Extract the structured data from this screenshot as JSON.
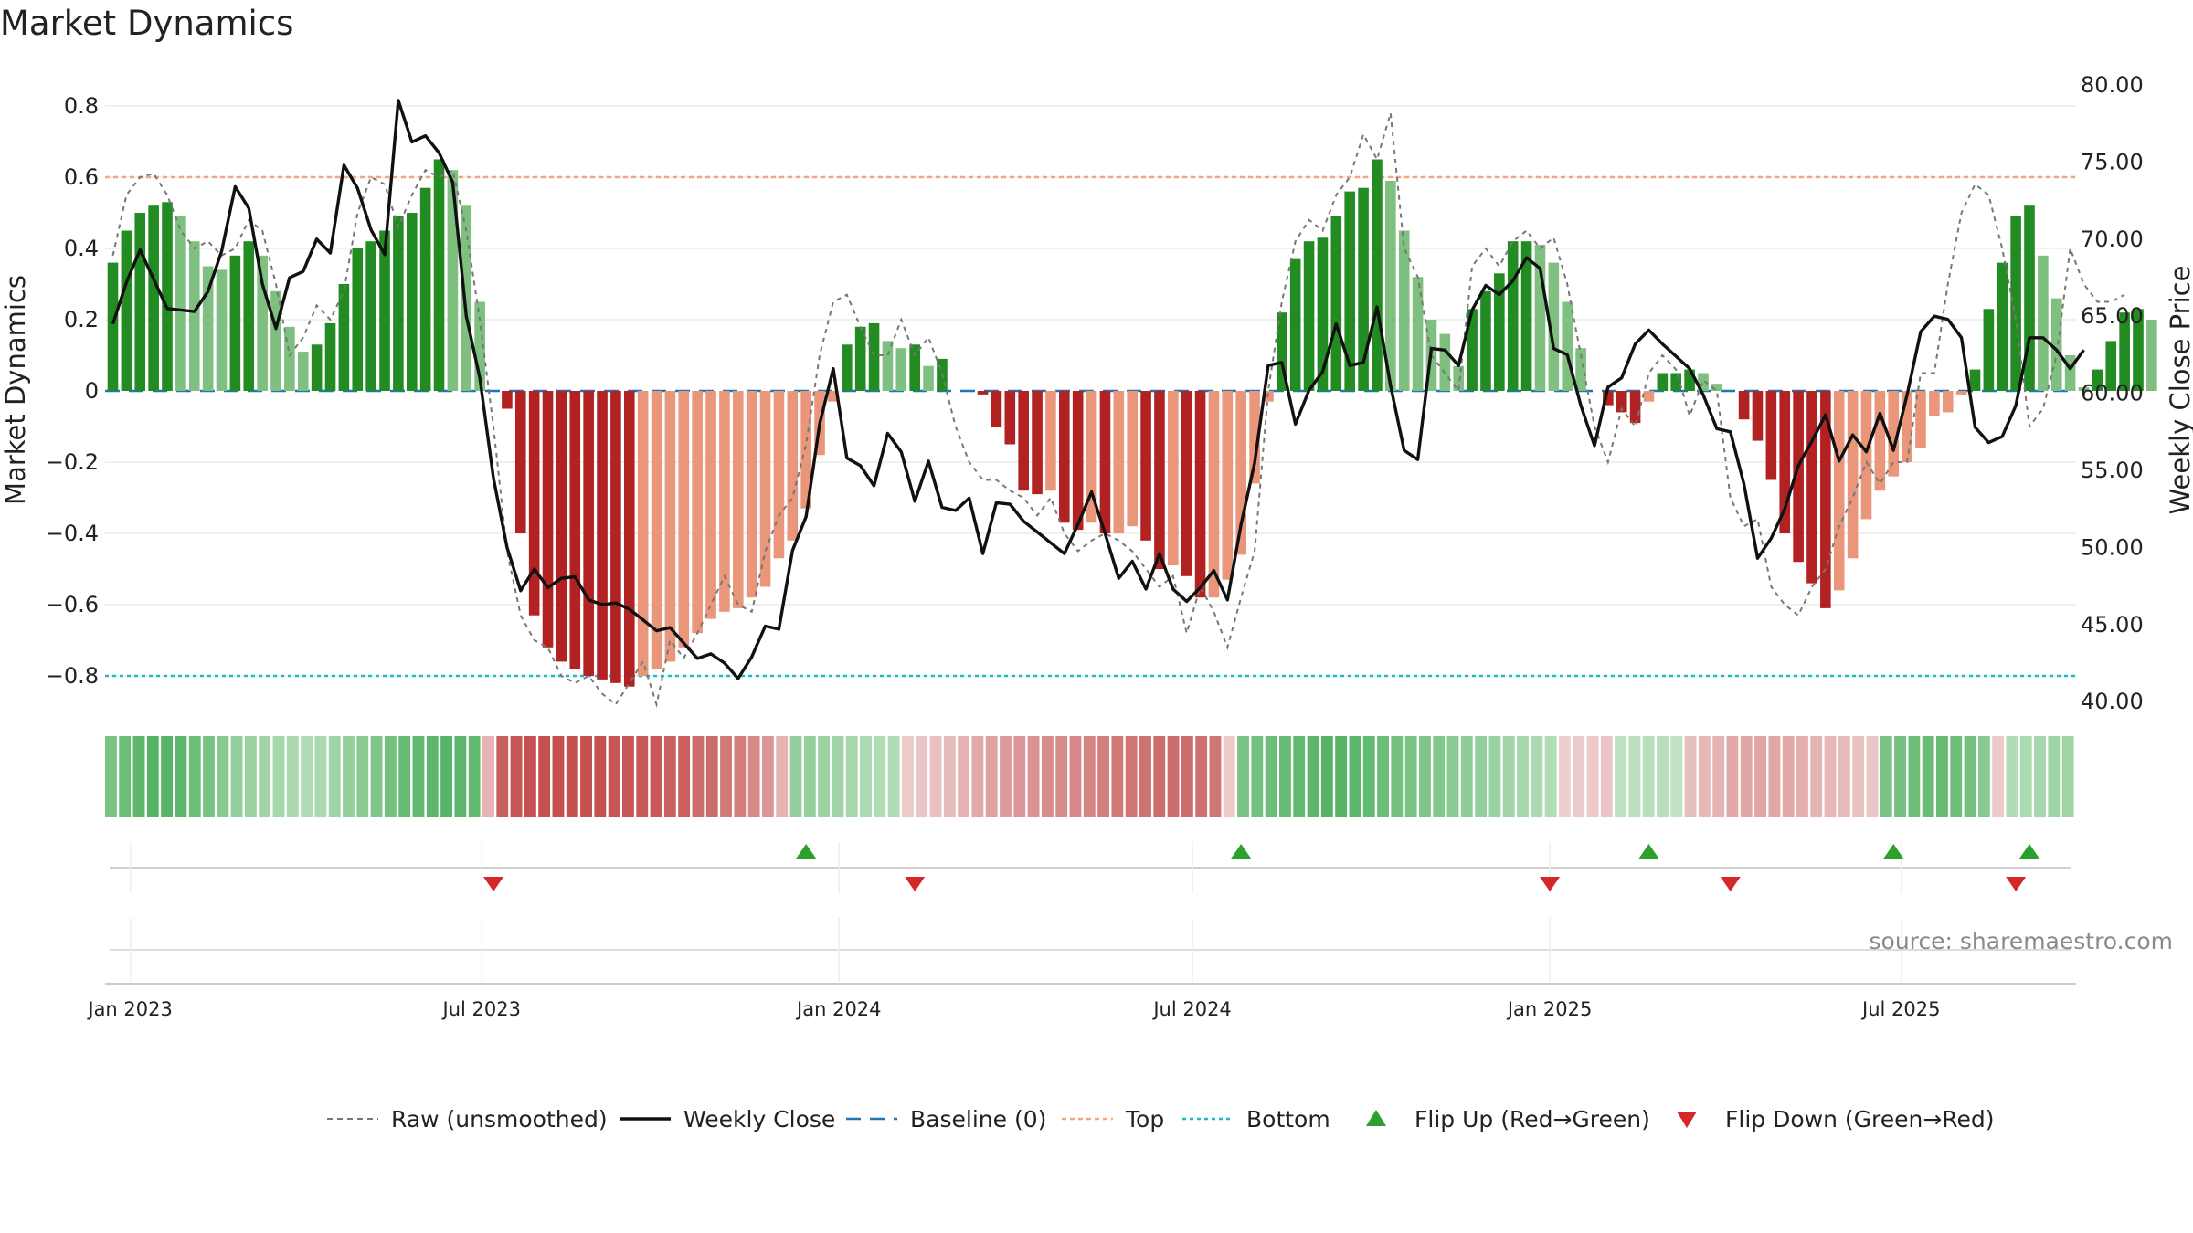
{
  "chart_data": {
    "type": "bar",
    "title": "Market Dynamics",
    "ylabel_left": "Market Dynamics",
    "ylabel_right": "Weekly Close Price",
    "source": "source: sharemaestro.com",
    "left_yticks": [
      "0.8",
      "0.6",
      "0.4",
      "0.2",
      "0",
      "−0.2",
      "−0.4",
      "−0.6",
      "−0.8"
    ],
    "left_ytick_values": [
      0.8,
      0.6,
      0.4,
      0.2,
      0,
      -0.2,
      -0.4,
      -0.6,
      -0.8
    ],
    "right_yticks": [
      "80.00",
      "75.00",
      "70.00",
      "65.00",
      "60.00",
      "55.00",
      "50.00",
      "45.00",
      "40.00"
    ],
    "right_ytick_values": [
      80,
      75,
      70,
      65,
      60,
      55,
      50,
      45,
      40
    ],
    "left_ylim": [
      -0.9,
      0.9
    ],
    "right_ylim": [
      39.1,
      80.7
    ],
    "x_range": [
      "2022-12-19",
      "2025-09-29"
    ],
    "xticks": [
      {
        "date": "2023-01-01",
        "label": "Jan 2023"
      },
      {
        "date": "2023-07-01",
        "label": "Jul 2023"
      },
      {
        "date": "2024-01-01",
        "label": "Jan 2024"
      },
      {
        "date": "2024-07-01",
        "label": "Jul 2024"
      },
      {
        "date": "2025-01-01",
        "label": "Jan 2025"
      },
      {
        "date": "2025-07-01",
        "label": "Jul 2025"
      }
    ],
    "start_week": "2022-12-23",
    "series_meta": [
      {
        "name": "Raw (unsmoothed)",
        "color": "#777777",
        "style": "dashed"
      },
      {
        "name": "Weekly Close",
        "color": "#111111",
        "style": "solid"
      },
      {
        "name": "Baseline (0)",
        "color": "#1f77b4",
        "style": "dashed"
      },
      {
        "name": "Top",
        "color": "#f4a582",
        "style": "dotted",
        "value": 0.6
      },
      {
        "name": "Bottom",
        "color": "#17becf",
        "style": "dotted",
        "value": -0.8
      },
      {
        "name": "Flip Up (Red→Green)",
        "color": "#2ca02c",
        "marker": "triangle-up"
      },
      {
        "name": "Flip Down (Green→Red)",
        "color": "#d62728",
        "marker": "triangle-down"
      }
    ],
    "colors": {
      "green_strong": "#228B22",
      "green_light": "#7fbf7f",
      "red_strong": "#b22222",
      "red_light": "#e9967a"
    },
    "dynamics": [
      0.36,
      0.45,
      0.5,
      0.52,
      0.53,
      0.49,
      0.42,
      0.35,
      0.34,
      0.38,
      0.42,
      0.38,
      0.28,
      0.18,
      0.11,
      0.13,
      0.19,
      0.3,
      0.4,
      0.42,
      0.45,
      0.49,
      0.5,
      0.57,
      0.65,
      0.62,
      0.52,
      0.25,
      0,
      -0.05,
      -0.4,
      -0.63,
      -0.72,
      -0.76,
      -0.78,
      -0.8,
      -0.81,
      -0.82,
      -0.83,
      -0.8,
      -0.78,
      -0.76,
      -0.72,
      -0.68,
      -0.64,
      -0.62,
      -0.61,
      -0.58,
      -0.55,
      -0.47,
      -0.42,
      -0.33,
      -0.18,
      -0.03,
      0.13,
      0.18,
      0.19,
      0.14,
      0.12,
      0.13,
      0.07,
      0.09,
      0,
      0,
      -0.01,
      -0.1,
      -0.15,
      -0.28,
      -0.29,
      -0.28,
      -0.37,
      -0.39,
      -0.37,
      -0.4,
      -0.4,
      -0.38,
      -0.42,
      -0.5,
      -0.49,
      -0.52,
      -0.58,
      -0.58,
      -0.53,
      -0.46,
      -0.26,
      -0.03,
      0.22,
      0.37,
      0.42,
      0.43,
      0.49,
      0.56,
      0.57,
      0.65,
      0.59,
      0.45,
      0.32,
      0.2,
      0.16,
      0.07,
      0.23,
      0.28,
      0.33,
      0.42,
      0.42,
      0.41,
      0.36,
      0.25,
      0.12,
      0,
      -0.04,
      -0.06,
      -0.09,
      -0.03,
      0.05,
      0.05,
      0.06,
      0.05,
      0.02,
      0,
      -0.08,
      -0.14,
      -0.25,
      -0.4,
      -0.48,
      -0.54,
      -0.61,
      -0.56,
      -0.47,
      -0.36,
      -0.28,
      -0.24,
      -0.2,
      -0.16,
      -0.07,
      -0.06,
      -0.01,
      0.06,
      0.23,
      0.36,
      0.49,
      0.52,
      0.38,
      0.26,
      0.1,
      0.01,
      0.06,
      0.14,
      0.22,
      0.23,
      0.2
    ],
    "raw": [
      0.38,
      0.55,
      0.6,
      0.61,
      0.55,
      0.45,
      0.4,
      0.42,
      0.38,
      0.4,
      0.48,
      0.45,
      0.3,
      0.1,
      0.15,
      0.24,
      0.2,
      0.28,
      0.5,
      0.6,
      0.58,
      0.46,
      0.55,
      0.62,
      0.6,
      0.62,
      0.45,
      0.2,
      -0.1,
      -0.45,
      -0.63,
      -0.7,
      -0.72,
      -0.8,
      -0.82,
      -0.8,
      -0.85,
      -0.88,
      -0.82,
      -0.76,
      -0.88,
      -0.7,
      -0.75,
      -0.68,
      -0.6,
      -0.52,
      -0.6,
      -0.62,
      -0.45,
      -0.35,
      -0.3,
      -0.15,
      0.1,
      0.25,
      0.27,
      0.18,
      0.1,
      0.1,
      0.2,
      0.1,
      0.15,
      0.05,
      -0.1,
      -0.2,
      -0.25,
      -0.25,
      -0.28,
      -0.3,
      -0.35,
      -0.3,
      -0.4,
      -0.45,
      -0.42,
      -0.4,
      -0.42,
      -0.45,
      -0.5,
      -0.55,
      -0.52,
      -0.68,
      -0.55,
      -0.62,
      -0.72,
      -0.58,
      -0.45,
      0,
      0.25,
      0.42,
      0.48,
      0.45,
      0.55,
      0.6,
      0.72,
      0.65,
      0.78,
      0.4,
      0.32,
      0.1,
      0.05,
      0,
      0.35,
      0.4,
      0.35,
      0.42,
      0.45,
      0.4,
      0.43,
      0.3,
      0.1,
      -0.1,
      -0.2,
      -0.05,
      -0.1,
      0.05,
      0.1,
      0.06,
      -0.07,
      0.03,
      0,
      -0.3,
      -0.38,
      -0.36,
      -0.55,
      -0.6,
      -0.63,
      -0.55,
      -0.5,
      -0.38,
      -0.3,
      -0.2,
      -0.26,
      -0.2,
      -0.2,
      0.05,
      0.05,
      0.3,
      0.5,
      0.58,
      0.55,
      0.4,
      0.2,
      -0.1,
      -0.05,
      0.1,
      0.4,
      0.3,
      0.25,
      0.25,
      0.27
    ],
    "close": [
      64.5,
      67.2,
      69.3,
      67.4,
      65.5,
      65.4,
      65.3,
      66.6,
      69.2,
      73.4,
      72.0,
      67.1,
      64.2,
      67.5,
      67.9,
      70.0,
      69.1,
      74.8,
      73.3,
      70.6,
      69.0,
      79.0,
      76.3,
      76.7,
      75.6,
      73.7,
      65.0,
      61.0,
      54.5,
      50.0,
      47.2,
      48.6,
      47.4,
      48.0,
      48.1,
      46.6,
      46.3,
      46.4,
      46.0,
      45.3,
      44.6,
      44.8,
      43.8,
      42.8,
      43.1,
      42.5,
      41.5,
      42.9,
      44.9,
      44.7,
      49.8,
      52.0,
      58.0,
      61.6,
      55.8,
      55.3,
      54.0,
      57.4,
      56.2,
      53.0,
      55.6,
      52.6,
      52.4,
      53.2,
      49.6,
      52.9,
      52.8,
      51.7,
      51.0,
      50.3,
      49.6,
      51.5,
      53.6,
      50.9,
      48.0,
      49.1,
      47.3,
      49.6,
      47.3,
      46.5,
      47.4,
      48.5,
      46.6,
      51.5,
      55.5,
      61.8,
      62.0,
      58.0,
      60.2,
      61.4,
      64.5,
      61.8,
      62.0,
      65.6,
      60.5,
      56.3,
      55.7,
      62.9,
      62.8,
      61.8,
      65.4,
      67.0,
      66.4,
      67.3,
      68.8,
      68.1,
      62.9,
      62.5,
      59.2,
      56.6,
      60.4,
      61.0,
      63.2,
      64.1,
      63.2,
      62.4,
      61.6,
      59.9,
      57.7,
      57.5,
      54.1,
      49.3,
      50.6,
      52.5,
      55.3,
      56.9,
      58.6,
      55.6,
      57.3,
      56.2,
      58.7,
      56.3,
      59.9,
      64.0,
      65.0,
      64.8,
      63.6,
      57.8,
      56.8,
      57.2,
      59.2,
      63.6,
      63.6,
      62.8,
      61.6,
      62.8
    ],
    "flips_up": [
      "2023-12-15",
      "2024-07-26",
      "2025-02-21",
      "2025-06-27",
      "2025-09-05"
    ],
    "flips_down": [
      "2023-07-07",
      "2024-02-09",
      "2025-01-01",
      "2025-04-04",
      "2025-08-29"
    ],
    "heat_strip": [
      0.4,
      0.45,
      0.5,
      0.52,
      0.52,
      0.5,
      0.45,
      0.4,
      0.35,
      0.3,
      0.28,
      0.26,
      0.24,
      0.22,
      0.2,
      0.22,
      0.26,
      0.3,
      0.34,
      0.38,
      0.42,
      0.46,
      0.48,
      0.5,
      0.52,
      0.5,
      0.48,
      -0.2,
      -0.55,
      -0.6,
      -0.62,
      -0.62,
      -0.62,
      -0.62,
      -0.62,
      -0.62,
      -0.6,
      -0.6,
      -0.58,
      -0.58,
      -0.55,
      -0.55,
      -0.5,
      -0.5,
      -0.45,
      -0.42,
      -0.38,
      -0.32,
      -0.2,
      0.3,
      0.3,
      0.28,
      0.26,
      0.24,
      0.22,
      0.2,
      0.2,
      -0.1,
      -0.12,
      -0.14,
      -0.16,
      -0.2,
      -0.24,
      -0.28,
      -0.3,
      -0.32,
      -0.34,
      -0.36,
      -0.36,
      -0.38,
      -0.4,
      -0.42,
      -0.44,
      -0.46,
      -0.48,
      -0.5,
      -0.5,
      -0.5,
      -0.48,
      -0.46,
      -0.1,
      0.4,
      0.42,
      0.44,
      0.46,
      0.48,
      0.5,
      0.52,
      0.52,
      0.5,
      0.48,
      0.45,
      0.42,
      0.4,
      0.38,
      0.36,
      0.34,
      0.32,
      0.3,
      0.28,
      0.26,
      0.24,
      0.22,
      0.2,
      -0.08,
      -0.1,
      -0.1,
      -0.12,
      0.16,
      0.17,
      0.17,
      0.18,
      0.14,
      -0.15,
      -0.18,
      -0.2,
      -0.24,
      -0.25,
      -0.26,
      -0.25,
      -0.24,
      -0.22,
      -0.2,
      -0.18,
      -0.16,
      -0.14,
      -0.12,
      0.4,
      0.42,
      0.44,
      0.46,
      0.46,
      0.44,
      0.42,
      0.35,
      -0.1,
      0.2,
      0.22,
      0.24,
      0.26,
      0.26
    ]
  }
}
